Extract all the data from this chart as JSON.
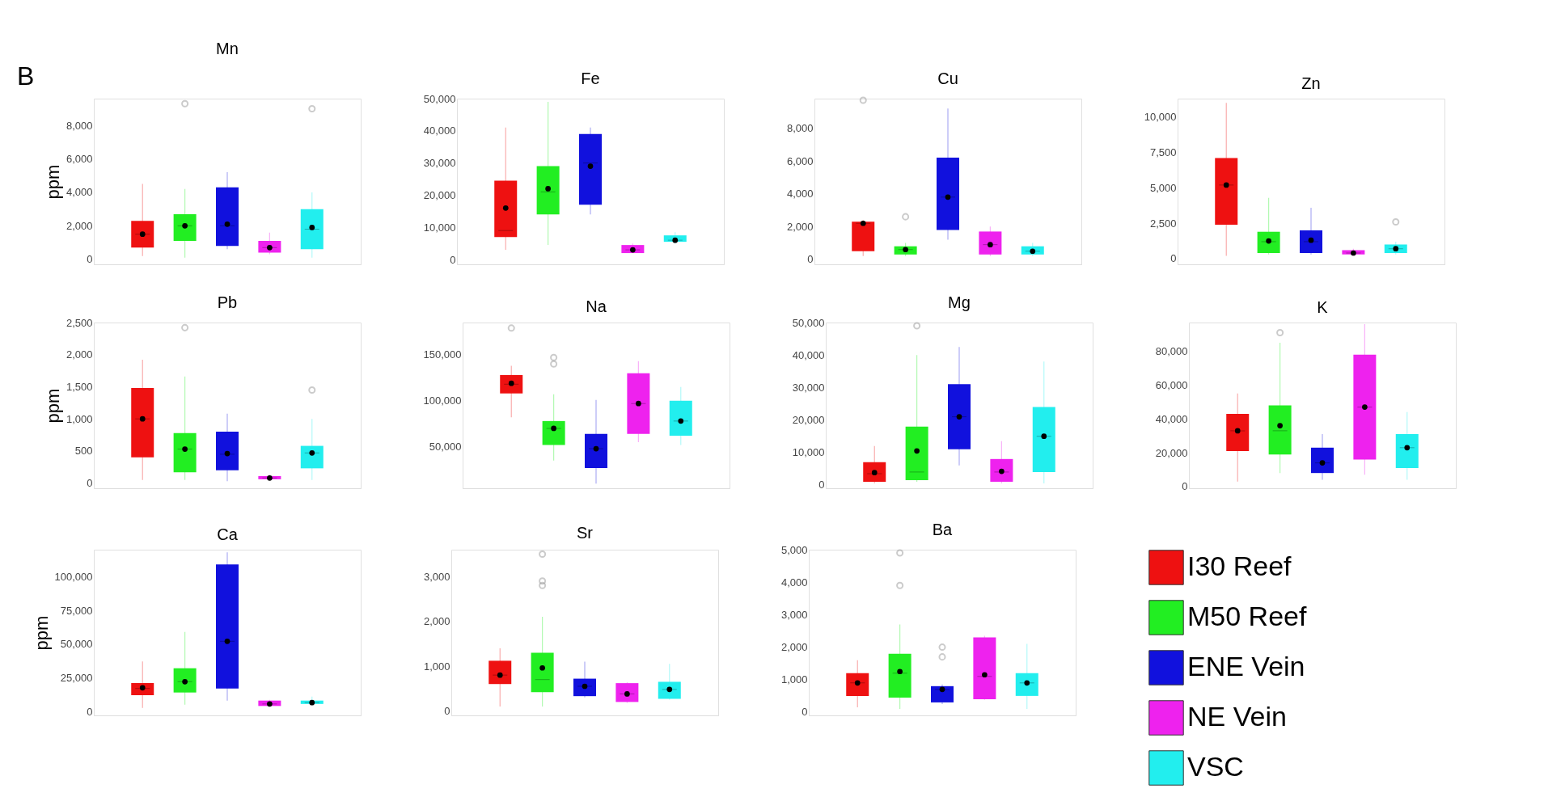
{
  "chart_data": [
    {
      "type": "box",
      "title": "Mn",
      "ylabel": "ppm",
      "annotations": [
        "B"
      ],
      "categories": [
        null
      ],
      "tick_labels": "y",
      "legend": false,
      "ylim": [
        -300,
        9600
      ],
      "yticks": [
        {
          "value": 0,
          "label": "0"
        },
        {
          "value": 2000,
          "label": "2,000"
        },
        {
          "value": 4000,
          "label": "4,000"
        },
        {
          "value": 6000,
          "label": "6,000"
        },
        {
          "value": 8000,
          "label": "8,000"
        }
      ],
      "series": [
        {
          "color": "#ee1111",
          "boxes": [
            {
              "low": 200,
              "q1": 700,
              "median": 1500,
              "q3": 2300,
              "high": 4500,
              "mean": 1500
            }
          ]
        },
        {
          "color": "#22ee22",
          "boxes": [
            {
              "low": 100,
              "q1": 1100,
              "median": 2000,
              "q3": 2700,
              "high": 4200,
              "mean": 2000,
              "outliers": [
                9300
              ]
            }
          ]
        },
        {
          "color": "#1111dd",
          "boxes": [
            {
              "low": 600,
              "q1": 800,
              "median": 2000,
              "q3": 4300,
              "high": 5200,
              "mean": 2100
            }
          ]
        },
        {
          "color": "#ee22ee",
          "boxes": [
            {
              "low": 300,
              "q1": 400,
              "median": 700,
              "q3": 1100,
              "high": 1600,
              "mean": 700
            }
          ]
        },
        {
          "color": "#22eeee",
          "boxes": [
            {
              "low": 100,
              "q1": 600,
              "median": 1800,
              "q3": 3000,
              "high": 4000,
              "mean": 1900,
              "outliers": [
                9000
              ]
            }
          ]
        }
      ]
    },
    {
      "type": "box",
      "title": "Fe",
      "categories": [
        null
      ],
      "tick_labels": "y",
      "legend": false,
      "ylim": [
        -1500,
        50000
      ],
      "yticks": [
        {
          "value": 0,
          "label": "0"
        },
        {
          "value": 10000,
          "label": "10,000"
        },
        {
          "value": 20000,
          "label": "20,000"
        },
        {
          "value": 30000,
          "label": "30,000"
        },
        {
          "value": 40000,
          "label": "40,000"
        },
        {
          "value": 50000,
          "label": "50,000"
        }
      ],
      "series": [
        {
          "color": "#ee1111",
          "boxes": [
            {
              "low": 3000,
              "q1": 7000,
              "median": 9000,
              "q3": 24500,
              "high": 41000,
              "mean": 16000
            }
          ]
        },
        {
          "color": "#22ee22",
          "boxes": [
            {
              "low": 4500,
              "q1": 14000,
              "median": 21000,
              "q3": 29000,
              "high": 49000,
              "mean": 22000
            }
          ]
        },
        {
          "color": "#1111dd",
          "boxes": [
            {
              "low": 14000,
              "q1": 17000,
              "median": 30000,
              "q3": 39000,
              "high": 41000,
              "mean": 29000
            }
          ]
        },
        {
          "color": "#ee22ee",
          "boxes": [
            {
              "low": 2000,
              "q1": 2000,
              "median": 3000,
              "q3": 4500,
              "high": 5000,
              "mean": 3000
            }
          ]
        },
        {
          "color": "#22eeee",
          "boxes": [
            {
              "low": 5000,
              "q1": 5500,
              "median": 6000,
              "q3": 7500,
              "high": 8500,
              "mean": 6000
            }
          ]
        }
      ]
    },
    {
      "type": "box",
      "title": "Cu",
      "categories": [
        null
      ],
      "tick_labels": "y",
      "legend": false,
      "ylim": [
        -300,
        9800
      ],
      "yticks": [
        {
          "value": 0,
          "label": "0"
        },
        {
          "value": 2000,
          "label": "2,000"
        },
        {
          "value": 4000,
          "label": "4,000"
        },
        {
          "value": 6000,
          "label": "6,000"
        },
        {
          "value": 8000,
          "label": "8,000"
        }
      ],
      "series": [
        {
          "color": "#ee1111",
          "boxes": [
            {
              "low": 200,
              "q1": 500,
              "median": 2200,
              "q3": 2300,
              "high": 2400,
              "mean": 2200,
              "outliers": [
                9700
              ]
            }
          ]
        },
        {
          "color": "#22ee22",
          "boxes": [
            {
              "low": 200,
              "q1": 300,
              "median": 600,
              "q3": 800,
              "high": 1000,
              "mean": 600,
              "outliers": [
                2600
              ]
            }
          ]
        },
        {
          "color": "#1111dd",
          "boxes": [
            {
              "low": 1200,
              "q1": 1800,
              "median": 3800,
              "q3": 6200,
              "high": 9200,
              "mean": 3800
            }
          ]
        },
        {
          "color": "#ee22ee",
          "boxes": [
            {
              "low": 200,
              "q1": 300,
              "median": 900,
              "q3": 1700,
              "high": 2000,
              "mean": 900
            }
          ]
        },
        {
          "color": "#22eeee",
          "boxes": [
            {
              "low": 200,
              "q1": 300,
              "median": 500,
              "q3": 800,
              "high": 1000,
              "mean": 500
            }
          ]
        }
      ]
    },
    {
      "type": "box",
      "title": "Zn",
      "categories": [
        null
      ],
      "tick_labels": "y",
      "legend": false,
      "ylim": [
        -400,
        11300
      ],
      "yticks": [
        {
          "value": 0,
          "label": "0"
        },
        {
          "value": 2500,
          "label": "2,500"
        },
        {
          "value": 5000,
          "label": "5,000"
        },
        {
          "value": 7500,
          "label": "7,500"
        },
        {
          "value": 10000,
          "label": "10,000"
        }
      ],
      "series": [
        {
          "color": "#ee1111",
          "boxes": [
            {
              "low": 200,
              "q1": 2400,
              "median": 5200,
              "q3": 7100,
              "high": 11000,
              "mean": 5200
            }
          ]
        },
        {
          "color": "#22ee22",
          "boxes": [
            {
              "low": 300,
              "q1": 400,
              "median": 1200,
              "q3": 1900,
              "high": 4300,
              "mean": 1250
            }
          ]
        },
        {
          "color": "#1111dd",
          "boxes": [
            {
              "low": 300,
              "q1": 400,
              "median": 1200,
              "q3": 2000,
              "high": 3600,
              "mean": 1300
            }
          ]
        },
        {
          "color": "#ee22ee",
          "boxes": [
            {
              "low": 200,
              "q1": 300,
              "median": 400,
              "q3": 600,
              "high": 700,
              "mean": 400
            }
          ]
        },
        {
          "color": "#22eeee",
          "boxes": [
            {
              "low": 300,
              "q1": 400,
              "median": 700,
              "q3": 1000,
              "high": 1200,
              "mean": 700,
              "outliers": [
                2600
              ]
            }
          ]
        }
      ]
    },
    {
      "type": "box",
      "title": "Pb",
      "ylabel": "ppm",
      "categories": [
        null
      ],
      "tick_labels": "y",
      "legend": false,
      "ylim": [
        -80,
        2500
      ],
      "yticks": [
        {
          "value": 0,
          "label": "0"
        },
        {
          "value": 500,
          "label": "500"
        },
        {
          "value": 1000,
          "label": "1,000"
        },
        {
          "value": 1500,
          "label": "1,500"
        },
        {
          "value": 2000,
          "label": "2,000"
        },
        {
          "value": 2500,
          "label": "2,500"
        }
      ],
      "series": [
        {
          "color": "#ee1111",
          "boxes": [
            {
              "low": 50,
              "q1": 400,
              "median": 1000,
              "q3": 1480,
              "high": 1920,
              "mean": 1000
            }
          ]
        },
        {
          "color": "#22ee22",
          "boxes": [
            {
              "low": 50,
              "q1": 170,
              "median": 530,
              "q3": 780,
              "high": 1660,
              "mean": 530,
              "outliers": [
                2420
              ]
            }
          ]
        },
        {
          "color": "#1111dd",
          "boxes": [
            {
              "low": 30,
              "q1": 200,
              "median": 450,
              "q3": 800,
              "high": 1080,
              "mean": 460
            }
          ]
        },
        {
          "color": "#ee22ee",
          "boxes": [
            {
              "low": 50,
              "q1": 60,
              "median": 80,
              "q3": 110,
              "high": 130,
              "mean": 80
            }
          ]
        },
        {
          "color": "#22eeee",
          "boxes": [
            {
              "low": 50,
              "q1": 230,
              "median": 470,
              "q3": 580,
              "high": 1000,
              "mean": 470,
              "outliers": [
                1450
              ]
            }
          ]
        }
      ]
    },
    {
      "type": "box",
      "title": "Na",
      "categories": [
        null
      ],
      "tick_labels": "y",
      "legend": false,
      "ylim": [
        5000,
        185000
      ],
      "yticks": [
        {
          "value": 50000,
          "label": "50,000"
        },
        {
          "value": 100000,
          "label": "100,000"
        },
        {
          "value": 150000,
          "label": "150,000"
        }
      ],
      "series": [
        {
          "color": "#ee1111",
          "boxes": [
            {
              "low": 82000,
              "q1": 108000,
              "median": 118000,
              "q3": 128000,
              "high": 138000,
              "mean": 119000,
              "outliers": [
                179000
              ]
            }
          ]
        },
        {
          "color": "#22ee22",
          "boxes": [
            {
              "low": 35000,
              "q1": 52000,
              "median": 70000,
              "q3": 78000,
              "high": 107000,
              "mean": 70000,
              "outliers": [
                140000,
                147000
              ]
            }
          ]
        },
        {
          "color": "#1111dd",
          "boxes": [
            {
              "low": 10000,
              "q1": 27000,
              "median": 48000,
              "q3": 64000,
              "high": 101000,
              "mean": 48000
            }
          ]
        },
        {
          "color": "#ee22ee",
          "boxes": [
            {
              "low": 55000,
              "q1": 64000,
              "median": 97000,
              "q3": 130000,
              "high": 143000,
              "mean": 97000
            }
          ]
        },
        {
          "color": "#22eeee",
          "boxes": [
            {
              "low": 52000,
              "q1": 62000,
              "median": 78000,
              "q3": 100000,
              "high": 115000,
              "mean": 78000
            }
          ]
        }
      ]
    },
    {
      "type": "box",
      "title": "Mg",
      "categories": [
        null
      ],
      "tick_labels": "y",
      "legend": false,
      "ylim": [
        -1000,
        50000
      ],
      "yticks": [
        {
          "value": 0,
          "label": "0"
        },
        {
          "value": 10000,
          "label": "10,000"
        },
        {
          "value": 20000,
          "label": "20,000"
        },
        {
          "value": 30000,
          "label": "30,000"
        },
        {
          "value": 40000,
          "label": "40,000"
        },
        {
          "value": 50000,
          "label": "50,000"
        }
      ],
      "series": [
        {
          "color": "#ee1111",
          "boxes": [
            {
              "low": 500,
              "q1": 1000,
              "median": 3500,
              "q3": 7000,
              "high": 12000,
              "mean": 3800
            }
          ]
        },
        {
          "color": "#22ee22",
          "boxes": [
            {
              "low": 1000,
              "q1": 1500,
              "median": 4000,
              "q3": 18000,
              "high": 40000,
              "mean": 10500,
              "outliers": [
                49000
              ]
            }
          ]
        },
        {
          "color": "#1111dd",
          "boxes": [
            {
              "low": 6000,
              "q1": 11000,
              "median": 21000,
              "q3": 31000,
              "high": 42500,
              "mean": 21000
            }
          ]
        },
        {
          "color": "#ee22ee",
          "boxes": [
            {
              "low": 500,
              "q1": 1000,
              "median": 4000,
              "q3": 8000,
              "high": 13500,
              "mean": 4200
            }
          ]
        },
        {
          "color": "#22eeee",
          "boxes": [
            {
              "low": 500,
              "q1": 4000,
              "median": 15000,
              "q3": 24000,
              "high": 38000,
              "mean": 15000
            }
          ]
        }
      ]
    },
    {
      "type": "box",
      "title": "K",
      "categories": [
        null
      ],
      "tick_labels": "y",
      "legend": false,
      "ylim": [
        -1000,
        97000
      ],
      "yticks": [
        {
          "value": 0,
          "label": "0"
        },
        {
          "value": 20000,
          "label": "20,000"
        },
        {
          "value": 40000,
          "label": "40,000"
        },
        {
          "value": 60000,
          "label": "60,000"
        },
        {
          "value": 80000,
          "label": "80,000"
        }
      ],
      "series": [
        {
          "color": "#ee1111",
          "boxes": [
            {
              "low": 3000,
              "q1": 21000,
              "median": 33000,
              "q3": 43000,
              "high": 55000,
              "mean": 33000
            }
          ]
        },
        {
          "color": "#22ee22",
          "boxes": [
            {
              "low": 8000,
              "q1": 19000,
              "median": 33000,
              "q3": 48000,
              "high": 85000,
              "mean": 36000,
              "outliers": [
                91000
              ]
            }
          ]
        },
        {
          "color": "#1111dd",
          "boxes": [
            {
              "low": 4000,
              "q1": 8000,
              "median": 14000,
              "q3": 23000,
              "high": 31000,
              "mean": 14000
            }
          ]
        },
        {
          "color": "#ee22ee",
          "boxes": [
            {
              "low": 7000,
              "q1": 16000,
              "median": 47000,
              "q3": 78000,
              "high": 96000,
              "mean": 47000
            }
          ]
        },
        {
          "color": "#22eeee",
          "boxes": [
            {
              "low": 4000,
              "q1": 11000,
              "median": 23000,
              "q3": 31000,
              "high": 44000,
              "mean": 23000
            }
          ]
        }
      ]
    },
    {
      "type": "box",
      "title": "Ca",
      "ylabel": "ppm",
      "categories": [
        null
      ],
      "tick_labels": "y",
      "legend": false,
      "ylim": [
        -3000,
        120000
      ],
      "yticks": [
        {
          "value": 0,
          "label": "0"
        },
        {
          "value": 25000,
          "label": "25,000"
        },
        {
          "value": 50000,
          "label": "50,000"
        },
        {
          "value": 75000,
          "label": "75,000"
        },
        {
          "value": 100000,
          "label": "100,000"
        }
      ],
      "series": [
        {
          "color": "#ee1111",
          "boxes": [
            {
              "low": 2500,
              "q1": 12000,
              "median": 17000,
              "q3": 21000,
              "high": 37000,
              "mean": 17500
            }
          ]
        },
        {
          "color": "#22ee22",
          "boxes": [
            {
              "low": 5000,
              "q1": 14000,
              "median": 22000,
              "q3": 32000,
              "high": 59000,
              "mean": 22000
            }
          ]
        },
        {
          "color": "#1111dd",
          "boxes": [
            {
              "low": 8000,
              "q1": 17000,
              "median": 52000,
              "q3": 109000,
              "high": 118000,
              "mean": 52000
            }
          ]
        },
        {
          "color": "#ee22ee",
          "boxes": [
            {
              "low": 4000,
              "q1": 4000,
              "median": 5500,
              "q3": 8000,
              "high": 8500,
              "mean": 5500
            }
          ]
        },
        {
          "color": "#22eeee",
          "boxes": [
            {
              "low": 5000,
              "q1": 5500,
              "median": 6500,
              "q3": 8000,
              "high": 11000,
              "mean": 6500
            }
          ]
        }
      ]
    },
    {
      "type": "box",
      "title": "Sr",
      "categories": [
        null
      ],
      "tick_labels": "y",
      "legend": false,
      "ylim": [
        -100,
        3600
      ],
      "yticks": [
        {
          "value": 0,
          "label": "0"
        },
        {
          "value": 1000,
          "label": "1,000"
        },
        {
          "value": 2000,
          "label": "2,000"
        },
        {
          "value": 3000,
          "label": "3,000"
        }
      ],
      "series": [
        {
          "color": "#ee1111",
          "boxes": [
            {
              "low": 100,
              "q1": 600,
              "median": 800,
              "q3": 1120,
              "high": 1400,
              "mean": 800
            }
          ]
        },
        {
          "color": "#22ee22",
          "boxes": [
            {
              "low": 100,
              "q1": 420,
              "median": 700,
              "q3": 1300,
              "high": 2100,
              "mean": 960,
              "outliers": [
                2800,
                2900,
                3500
              ]
            }
          ]
        },
        {
          "color": "#1111dd",
          "boxes": [
            {
              "low": 300,
              "q1": 330,
              "median": 550,
              "q3": 720,
              "high": 1100,
              "mean": 550
            }
          ]
        },
        {
          "color": "#ee22ee",
          "boxes": [
            {
              "low": 180,
              "q1": 200,
              "median": 380,
              "q3": 620,
              "high": 640,
              "mean": 380
            }
          ]
        },
        {
          "color": "#22eeee",
          "boxes": [
            {
              "low": 250,
              "q1": 270,
              "median": 480,
              "q3": 650,
              "high": 1050,
              "mean": 480
            }
          ]
        }
      ]
    },
    {
      "type": "box",
      "title": "Ba",
      "categories": [
        null
      ],
      "tick_labels": "y",
      "legend": "right",
      "ylim": [
        -100,
        5000
      ],
      "yticks": [
        {
          "value": 0,
          "label": "0"
        },
        {
          "value": 1000,
          "label": "1,000"
        },
        {
          "value": 2000,
          "label": "2,000"
        },
        {
          "value": 3000,
          "label": "3,000"
        },
        {
          "value": 4000,
          "label": "4,000"
        },
        {
          "value": 5000,
          "label": "5,000"
        }
      ],
      "series": [
        {
          "name": "I30 Reef",
          "color": "#ee1111",
          "boxes": [
            {
              "low": 150,
              "q1": 500,
              "median": 900,
              "q3": 1200,
              "high": 1600,
              "mean": 900
            }
          ]
        },
        {
          "name": "M50 Reef",
          "color": "#22ee22",
          "boxes": [
            {
              "low": 100,
              "q1": 450,
              "median": 1200,
              "q3": 1800,
              "high": 2700,
              "mean": 1250,
              "outliers": [
                3900,
                4900
              ]
            }
          ]
        },
        {
          "name": "ENE Vein",
          "color": "#1111dd",
          "boxes": [
            {
              "low": 250,
              "q1": 300,
              "median": 700,
              "q3": 800,
              "high": 850,
              "mean": 700,
              "outliers": [
                1700,
                2000
              ]
            }
          ]
        },
        {
          "name": "NE Vein",
          "color": "#ee22ee",
          "boxes": [
            {
              "low": 380,
              "q1": 400,
              "median": 1100,
              "q3": 2300,
              "high": 2350,
              "mean": 1150
            }
          ]
        },
        {
          "name": "VSC",
          "color": "#22eeee",
          "boxes": [
            {
              "low": 100,
              "q1": 500,
              "median": 900,
              "q3": 1200,
              "high": 2100,
              "mean": 900
            }
          ]
        }
      ]
    }
  ]
}
